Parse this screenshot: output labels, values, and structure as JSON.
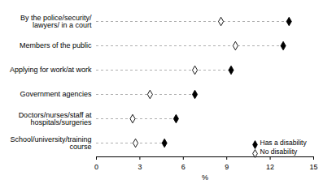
{
  "chart_data": {
    "type": "dot",
    "orientation": "horizontal",
    "categories": [
      "By the police/security/\nlawyers/ in a court",
      "Members of the public",
      "Applying for work/at work",
      "Government agencies",
      "Doctors/nurses/staff at\nhospitals/surgeries",
      "School/university/training\ncourse"
    ],
    "series": [
      {
        "name": "Has a disability",
        "color": "#000000",
        "marker": "diamond",
        "values": [
          13.3,
          12.9,
          9.3,
          6.8,
          5.5,
          4.7
        ]
      },
      {
        "name": "No disability",
        "color": "#000000",
        "marker": "diamond_open",
        "values": [
          8.6,
          9.6,
          6.8,
          3.7,
          2.5,
          2.7
        ]
      }
    ],
    "x_label": "%",
    "xlim": [
      0,
      15
    ],
    "xticks": [
      0,
      3,
      6,
      9,
      12,
      15
    ],
    "legend": "bottom-right"
  }
}
